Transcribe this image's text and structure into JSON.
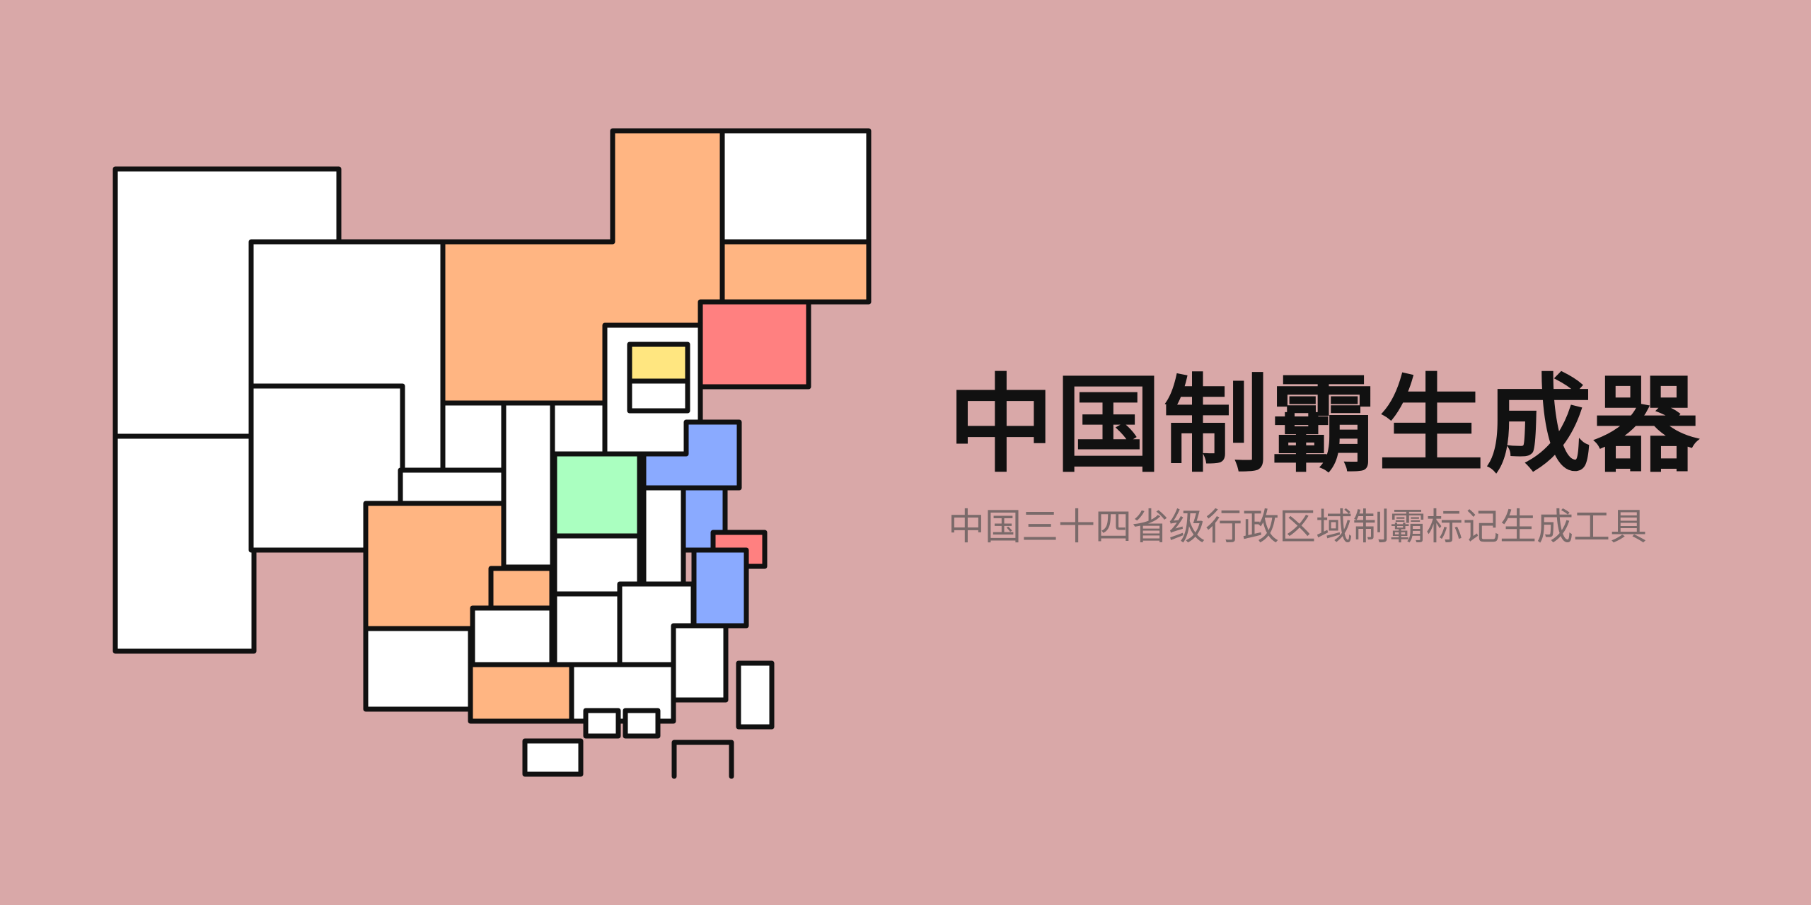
{
  "header": {
    "title": "中国制霸生成器",
    "subtitle": "中国三十四省级行政区域制霸标记生成工具"
  },
  "colors": {
    "background": "#d9a8a8",
    "outline": "#111111",
    "unvisited": "#ffffff",
    "orange": "#ffb582",
    "red": "#ff8080",
    "yellow": "#ffe680",
    "green": "#aaffc0",
    "blue": "#8aaaff",
    "subtitle_text": "#7a6a6a"
  },
  "map": {
    "icon": "china-province-map-icon",
    "region_levels": [
      "white",
      "white",
      "white",
      "white",
      "orange",
      "white",
      "orange",
      "red",
      "white",
      "yellow",
      "white",
      "white",
      "white",
      "white",
      "white",
      "green",
      "blue",
      "white",
      "blue",
      "red",
      "blue",
      "orange",
      "orange",
      "white",
      "white",
      "white",
      "white",
      "white",
      "orange",
      "white",
      "white",
      "white",
      "white",
      "white",
      "white"
    ]
  }
}
